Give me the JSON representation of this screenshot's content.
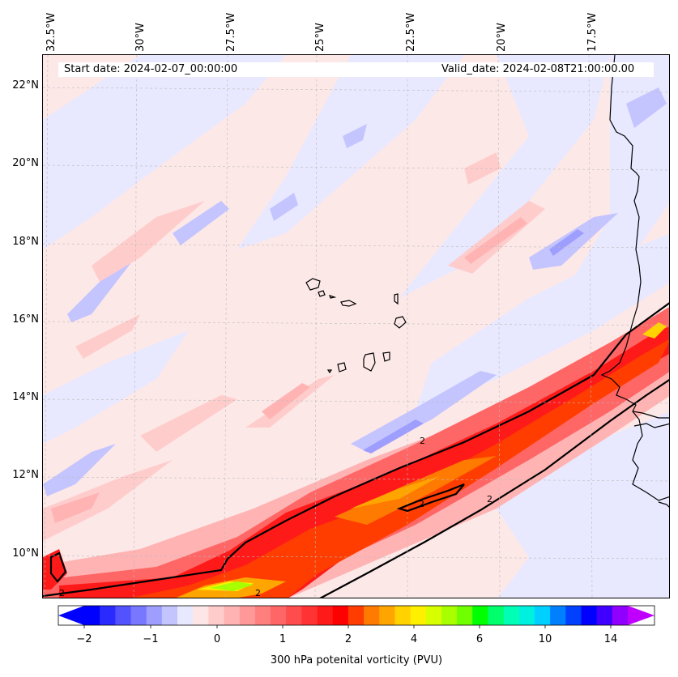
{
  "header": {
    "start_date": "Start date: 2024-02-07_00:00:00",
    "valid_date": "Valid_date: 2024-02-08T21:00:00.00"
  },
  "longitude_labels": [
    "32.5°W",
    "30°W",
    "27.5°W",
    "25°W",
    "22.5°W",
    "20°W",
    "17.5°W"
  ],
  "latitude_labels": [
    "22°N",
    "20°N",
    "18°N",
    "16°N",
    "14°N",
    "12°N",
    "10°N"
  ],
  "colorbar": {
    "title": "300 hPa potenital vorticity (PVU)",
    "tick_labels": [
      "−2",
      "−1",
      "0",
      "1",
      "2",
      "4",
      "6",
      "10",
      "14"
    ],
    "colors": [
      "#0000ff",
      "#2a2aff",
      "#5252ff",
      "#7878ff",
      "#9e9eff",
      "#c4c4ff",
      "#e8e8ff",
      "#ffe6e6",
      "#ffcccc",
      "#ffb3b3",
      "#ff9999",
      "#ff7f7f",
      "#ff6666",
      "#ff4c4c",
      "#ff3333",
      "#ff1a1a",
      "#ff0000",
      "#ff3d00",
      "#ff7a00",
      "#ffa500",
      "#ffd200",
      "#fff000",
      "#d8ff00",
      "#a8ff00",
      "#70ff00",
      "#00ff00",
      "#00ff6a",
      "#00ffb4",
      "#00f0e0",
      "#00d0ff",
      "#0080ff",
      "#0040ff",
      "#0000ff",
      "#4000ff",
      "#9000ff"
    ],
    "extend_low_color": "#0000ff",
    "extend_high_color": "#c000ff"
  },
  "contour": {
    "level_label": "2"
  },
  "map": {
    "background_color": "#fde8e8",
    "coastline_color": "#000000",
    "grid_color": "#bbbbbb"
  }
}
